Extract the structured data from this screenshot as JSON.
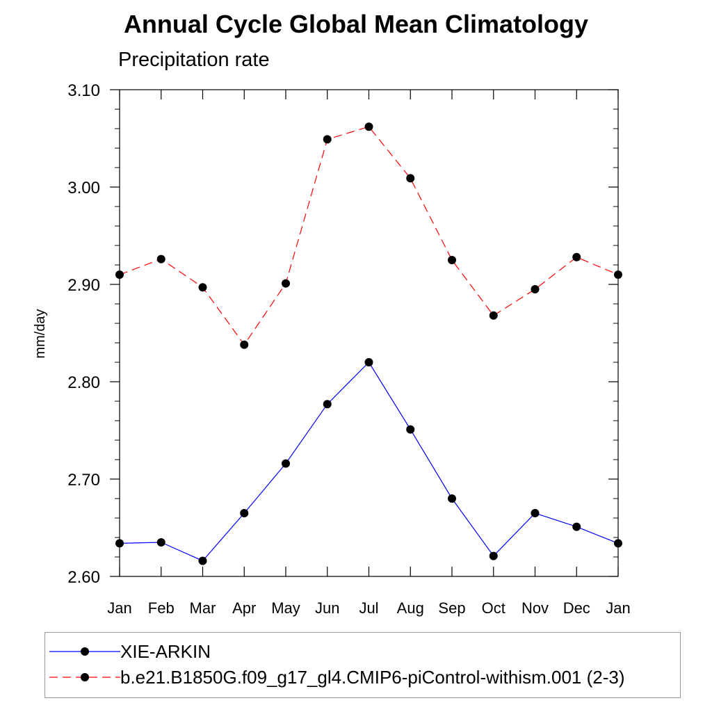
{
  "chart_data": {
    "type": "line",
    "title": "Annual Cycle Global Mean Climatology",
    "subtitle": "Precipitation rate",
    "xlabel": "",
    "ylabel": "mm/day",
    "categories": [
      "Jan",
      "Feb",
      "Mar",
      "Apr",
      "May",
      "Jun",
      "Jul",
      "Aug",
      "Sep",
      "Oct",
      "Nov",
      "Dec",
      "Jan"
    ],
    "ylim": [
      2.6,
      3.1
    ],
    "yticks": [
      2.6,
      2.7,
      2.8,
      2.9,
      3.0,
      3.1
    ],
    "ytick_labels": [
      "2.60",
      "2.70",
      "2.80",
      "2.90",
      "3.00",
      "3.10"
    ],
    "grid": false,
    "legend_position": "bottom",
    "series": [
      {
        "name": "XIE-ARKIN",
        "color": "#0000ff",
        "dash": "solid",
        "values": [
          2.634,
          2.635,
          2.616,
          2.665,
          2.716,
          2.777,
          2.82,
          2.751,
          2.68,
          2.621,
          2.665,
          2.651,
          2.634
        ]
      },
      {
        "name": "b.e21.B1850G.f09_g17_gl4.CMIP6-piControl-withism.001 (2-3)",
        "color": "#ff0000",
        "dash": "dashed",
        "values": [
          2.91,
          2.926,
          2.897,
          2.838,
          2.901,
          3.049,
          3.062,
          3.009,
          2.925,
          2.868,
          2.895,
          2.928,
          2.91
        ]
      }
    ]
  }
}
